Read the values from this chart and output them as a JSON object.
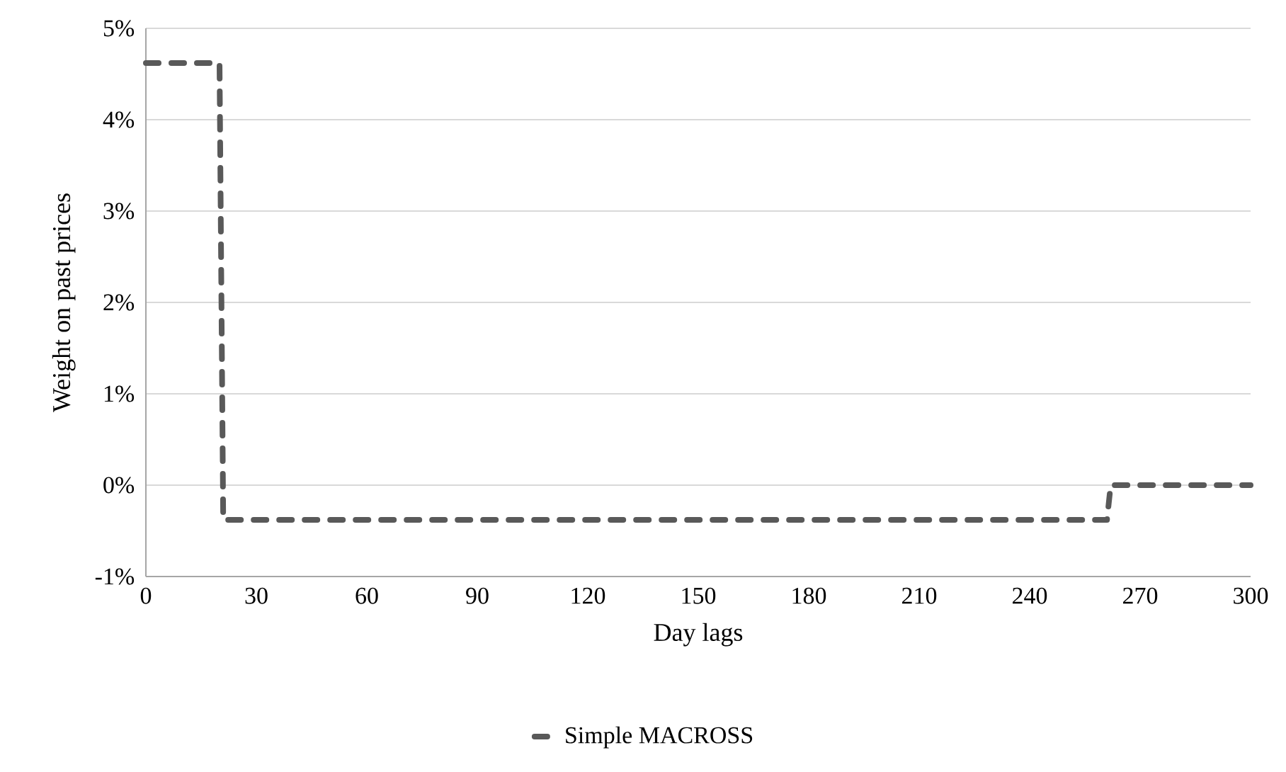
{
  "chart_data": {
    "type": "line",
    "xlabel": "Day lags",
    "ylabel": "Weight on past prices",
    "series": [
      {
        "name": "Simple MACROSS",
        "color": "#595959",
        "x": [
          0,
          20,
          21,
          261,
          262,
          300
        ],
        "values": [
          4.62,
          4.62,
          -0.38,
          -0.38,
          0,
          0
        ]
      }
    ],
    "xlim": [
      0,
      300
    ],
    "xticks": [
      0,
      30,
      60,
      90,
      120,
      150,
      180,
      210,
      240,
      270,
      300
    ],
    "ylim": [
      -1,
      5
    ],
    "yticks": [
      {
        "value": -1,
        "label": "-1%"
      },
      {
        "value": 0,
        "label": "0%"
      },
      {
        "value": 1,
        "label": "1%"
      },
      {
        "value": 2,
        "label": "2%"
      },
      {
        "value": 3,
        "label": "3%"
      },
      {
        "value": 4,
        "label": "4%"
      },
      {
        "value": 5,
        "label": "5%"
      }
    ],
    "grid": "y",
    "legend": "bottom",
    "marker": "none",
    "line_style": "dashed"
  }
}
